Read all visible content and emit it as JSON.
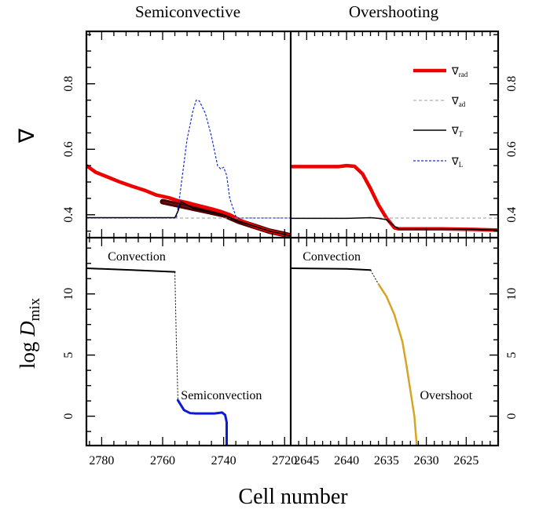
{
  "chart_data": {
    "type": "line",
    "column_titles": [
      "Semiconvective",
      "Overshooting"
    ],
    "xlabel": "Cell number",
    "ylabel_top": "∇",
    "ylabel_bottom_main": "log ",
    "ylabel_bottom_var": "D",
    "ylabel_bottom_sub": "mix",
    "x_inverted": true,
    "legend": {
      "placement": "top-right",
      "entries": [
        {
          "symbol": "∇",
          "sub": "rad",
          "color": "#ee0000",
          "style": "thick"
        },
        {
          "symbol": "∇",
          "sub": "ad",
          "color": "#999999",
          "style": "dashed"
        },
        {
          "symbol": "∇",
          "sub": "T",
          "color": "#000000",
          "style": "solid"
        },
        {
          "symbol": "∇",
          "sub": "L",
          "color": "#1a2fd6",
          "style": "dotted"
        }
      ]
    },
    "columns": [
      {
        "xlim": [
          2785,
          2718
        ],
        "xticks": [
          2780,
          2760,
          2740,
          2720
        ],
        "top": {
          "ylim": [
            0.33,
            0.96
          ],
          "yticks": [
            0.4,
            0.6,
            0.8
          ],
          "series": [
            {
              "key": "rad_outline",
              "color": "#4a0000",
              "width": 7,
              "x": [
                2760,
                2755,
                2750,
                2745,
                2740,
                2735,
                2730,
                2725,
                2720,
                2718
              ],
              "y": [
                0.44,
                0.43,
                0.42,
                0.41,
                0.4,
                0.38,
                0.365,
                0.35,
                0.34,
                0.335
              ]
            },
            {
              "key": "rad",
              "color": "#ee0000",
              "width": 4.5,
              "x": [
                2785,
                2782,
                2778,
                2774,
                2770,
                2766,
                2762,
                2758,
                2755,
                2752,
                2750,
                2747,
                2744,
                2741,
                2738,
                2735,
                2732,
                2729,
                2725,
                2721,
                2718
              ],
              "y": [
                0.55,
                0.53,
                0.515,
                0.5,
                0.487,
                0.475,
                0.46,
                0.452,
                0.443,
                0.437,
                0.432,
                0.425,
                0.418,
                0.41,
                0.4,
                0.385,
                0.373,
                0.362,
                0.35,
                0.341,
                0.335
              ]
            },
            {
              "key": "rad_inner",
              "color": "#7a1010",
              "width": 1.3,
              "x": [
                2760,
                2755,
                2750,
                2745,
                2740,
                2735,
                2730,
                2725,
                2720,
                2718
              ],
              "y": [
                0.44,
                0.43,
                0.42,
                0.41,
                0.4,
                0.38,
                0.365,
                0.35,
                0.34,
                0.335
              ]
            },
            {
              "key": "ad",
              "color": "#999999",
              "width": 1,
              "dash": "4,3",
              "x": [
                2785,
                2718
              ],
              "y": [
                0.39,
                0.39
              ]
            },
            {
              "key": "L",
              "color": "#1a2fd6",
              "width": 1.2,
              "dash": "3,2",
              "x": [
                2785,
                2755.5,
                2754.5,
                2752,
                2750,
                2749,
                2748,
                2746,
                2744,
                2742,
                2741,
                2740,
                2739,
                2738,
                2736,
                2735,
                2718
              ],
              "y": [
                0.39,
                0.39,
                0.45,
                0.63,
                0.72,
                0.75,
                0.748,
                0.71,
                0.64,
                0.55,
                0.54,
                0.545,
                0.52,
                0.45,
                0.395,
                0.39,
                0.39
              ]
            },
            {
              "key": "T",
              "color": "#000000",
              "width": 1.5,
              "x": [
                2785,
                2756,
                2755,
                2754,
                2752,
                2750,
                2745,
                2740,
                2735,
                2730,
                2725,
                2720,
                2718
              ],
              "y": [
                0.391,
                0.391,
                0.41,
                0.44,
                0.43,
                0.42,
                0.41,
                0.4,
                0.38,
                0.365,
                0.35,
                0.34,
                0.335
              ]
            }
          ]
        },
        "bottom": {
          "ylim": [
            -2.4,
            14.6
          ],
          "yticks": [
            0,
            5,
            10
          ],
          "series": [
            {
              "key": "conv",
              "color": "#000000",
              "width": 2,
              "x": [
                2785,
                2770,
                2756
              ],
              "y": [
                12.1,
                11.95,
                11.8
              ]
            },
            {
              "key": "link",
              "color": "#000000",
              "width": 1,
              "dash": "2,2",
              "x": [
                2756,
                2755.5,
                2755
              ],
              "y": [
                11.8,
                6,
                1.4
              ]
            },
            {
              "key": "semi",
              "color": "#0a1ad8",
              "width": 3,
              "x": [
                2755,
                2753,
                2751,
                2749,
                2746,
                2743,
                2740.5,
                2739.5,
                2739,
                2739
              ],
              "y": [
                1.3,
                0.5,
                0.25,
                0.22,
                0.22,
                0.22,
                0.3,
                0.1,
                -0.5,
                -2.4
              ]
            }
          ],
          "annotations": [
            {
              "text": "Convection",
              "x": 2778,
              "y": 12.75
            },
            {
              "text": "Semiconvection",
              "x": 2754,
              "y": 1.4
            }
          ]
        }
      },
      {
        "xlim": [
          2647,
          2621
        ],
        "xticks": [
          2645,
          2640,
          2635,
          2630,
          2625
        ],
        "top": {
          "ylim": [
            0.33,
            0.96
          ],
          "yticks": [
            0.4,
            0.6,
            0.8
          ],
          "series": [
            {
              "key": "rad",
              "color": "#ee0000",
              "width": 4.5,
              "x": [
                2647,
                2644,
                2641,
                2640,
                2639,
                2638,
                2637,
                2636,
                2635,
                2634,
                2633.5,
                2632,
                2628,
                2624,
                2621
              ],
              "y": [
                0.547,
                0.547,
                0.547,
                0.55,
                0.548,
                0.525,
                0.48,
                0.43,
                0.39,
                0.36,
                0.357,
                0.357,
                0.357,
                0.355,
                0.353
              ]
            },
            {
              "key": "ad",
              "color": "#999999",
              "width": 1,
              "dash": "4,3",
              "x": [
                2647,
                2621
              ],
              "y": [
                0.39,
                0.39
              ]
            },
            {
              "key": "T",
              "color": "#000000",
              "width": 1.5,
              "x": [
                2647,
                2640,
                2637,
                2636,
                2635,
                2634,
                2633.5,
                2632,
                2628,
                2624,
                2621
              ],
              "y": [
                0.389,
                0.389,
                0.391,
                0.389,
                0.385,
                0.365,
                0.357,
                0.357,
                0.357,
                0.355,
                0.353
              ]
            }
          ]
        },
        "bottom": {
          "ylim": [
            -2.4,
            14.6
          ],
          "yticks": [
            0,
            5,
            10
          ],
          "series": [
            {
              "key": "conv",
              "color": "#000000",
              "width": 2,
              "x": [
                2647,
                2640,
                2637
              ],
              "y": [
                12.1,
                12.05,
                11.95
              ]
            },
            {
              "key": "link",
              "color": "#000000",
              "width": 1,
              "dash": "2,2",
              "x": [
                2637,
                2636
              ],
              "y": [
                11.95,
                10.8
              ]
            },
            {
              "key": "overshoot",
              "color": "#d9a425",
              "width": 2.5,
              "x": [
                2636,
                2635,
                2634,
                2633,
                2632.5,
                2632,
                2631.5,
                2631.2
              ],
              "y": [
                10.8,
                9.8,
                8.3,
                6.1,
                4.2,
                2.1,
                0,
                -2.4
              ]
            }
          ],
          "annotations": [
            {
              "text": "Convection",
              "x": 2645.5,
              "y": 12.75
            },
            {
              "text": "Overshoot",
              "x": 2630.8,
              "y": 1.4
            }
          ]
        }
      }
    ]
  }
}
